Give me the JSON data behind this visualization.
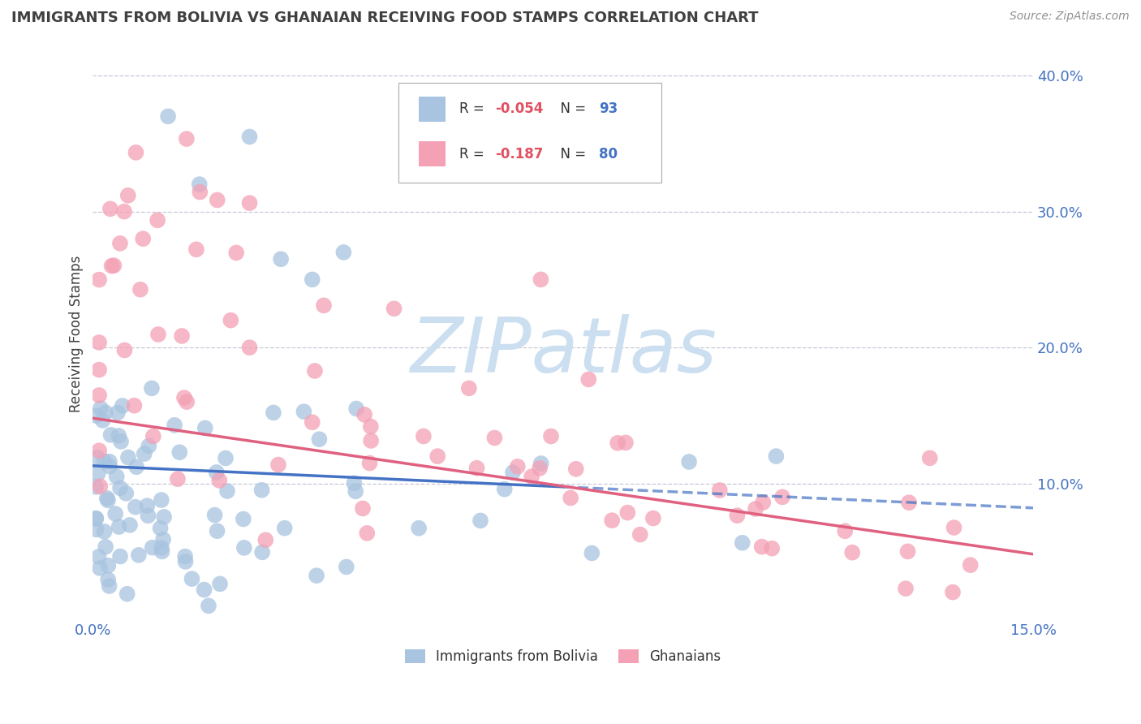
{
  "title": "IMMIGRANTS FROM BOLIVIA VS GHANAIAN RECEIVING FOOD STAMPS CORRELATION CHART",
  "source": "Source: ZipAtlas.com",
  "ylabel": "Receiving Food Stamps",
  "xlim": [
    0.0,
    0.15
  ],
  "ylim": [
    0.0,
    0.42
  ],
  "yticks": [
    0.1,
    0.2,
    0.3,
    0.4
  ],
  "ytick_labels": [
    "10.0%",
    "20.0%",
    "30.0%",
    "40.0%"
  ],
  "bolivia_color": "#a8c4e0",
  "ghana_color": "#f4a0b5",
  "bolivia_line_color": "#4472c4",
  "ghana_line_color": "#e06080",
  "watermark_text": "ZIPatlas",
  "background_color": "#ffffff",
  "grid_color": "#c8c8d8",
  "title_color": "#404040",
  "axis_label_color": "#4472c4",
  "legend_r_color": "#e05060",
  "legend_n_color": "#4472c4",
  "bolivia_R": -0.054,
  "bolivia_N": 93,
  "ghana_R": -0.187,
  "ghana_N": 80,
  "bolivia_line_x0": 0.0,
  "bolivia_line_y0": 0.113,
  "bolivia_line_x1": 0.15,
  "bolivia_line_y1": 0.082,
  "bolivia_line_solid_end": 0.075,
  "ghana_line_x0": 0.0,
  "ghana_line_y0": 0.148,
  "ghana_line_x1": 0.15,
  "ghana_line_y1": 0.048,
  "scatter_point_size": 200
}
